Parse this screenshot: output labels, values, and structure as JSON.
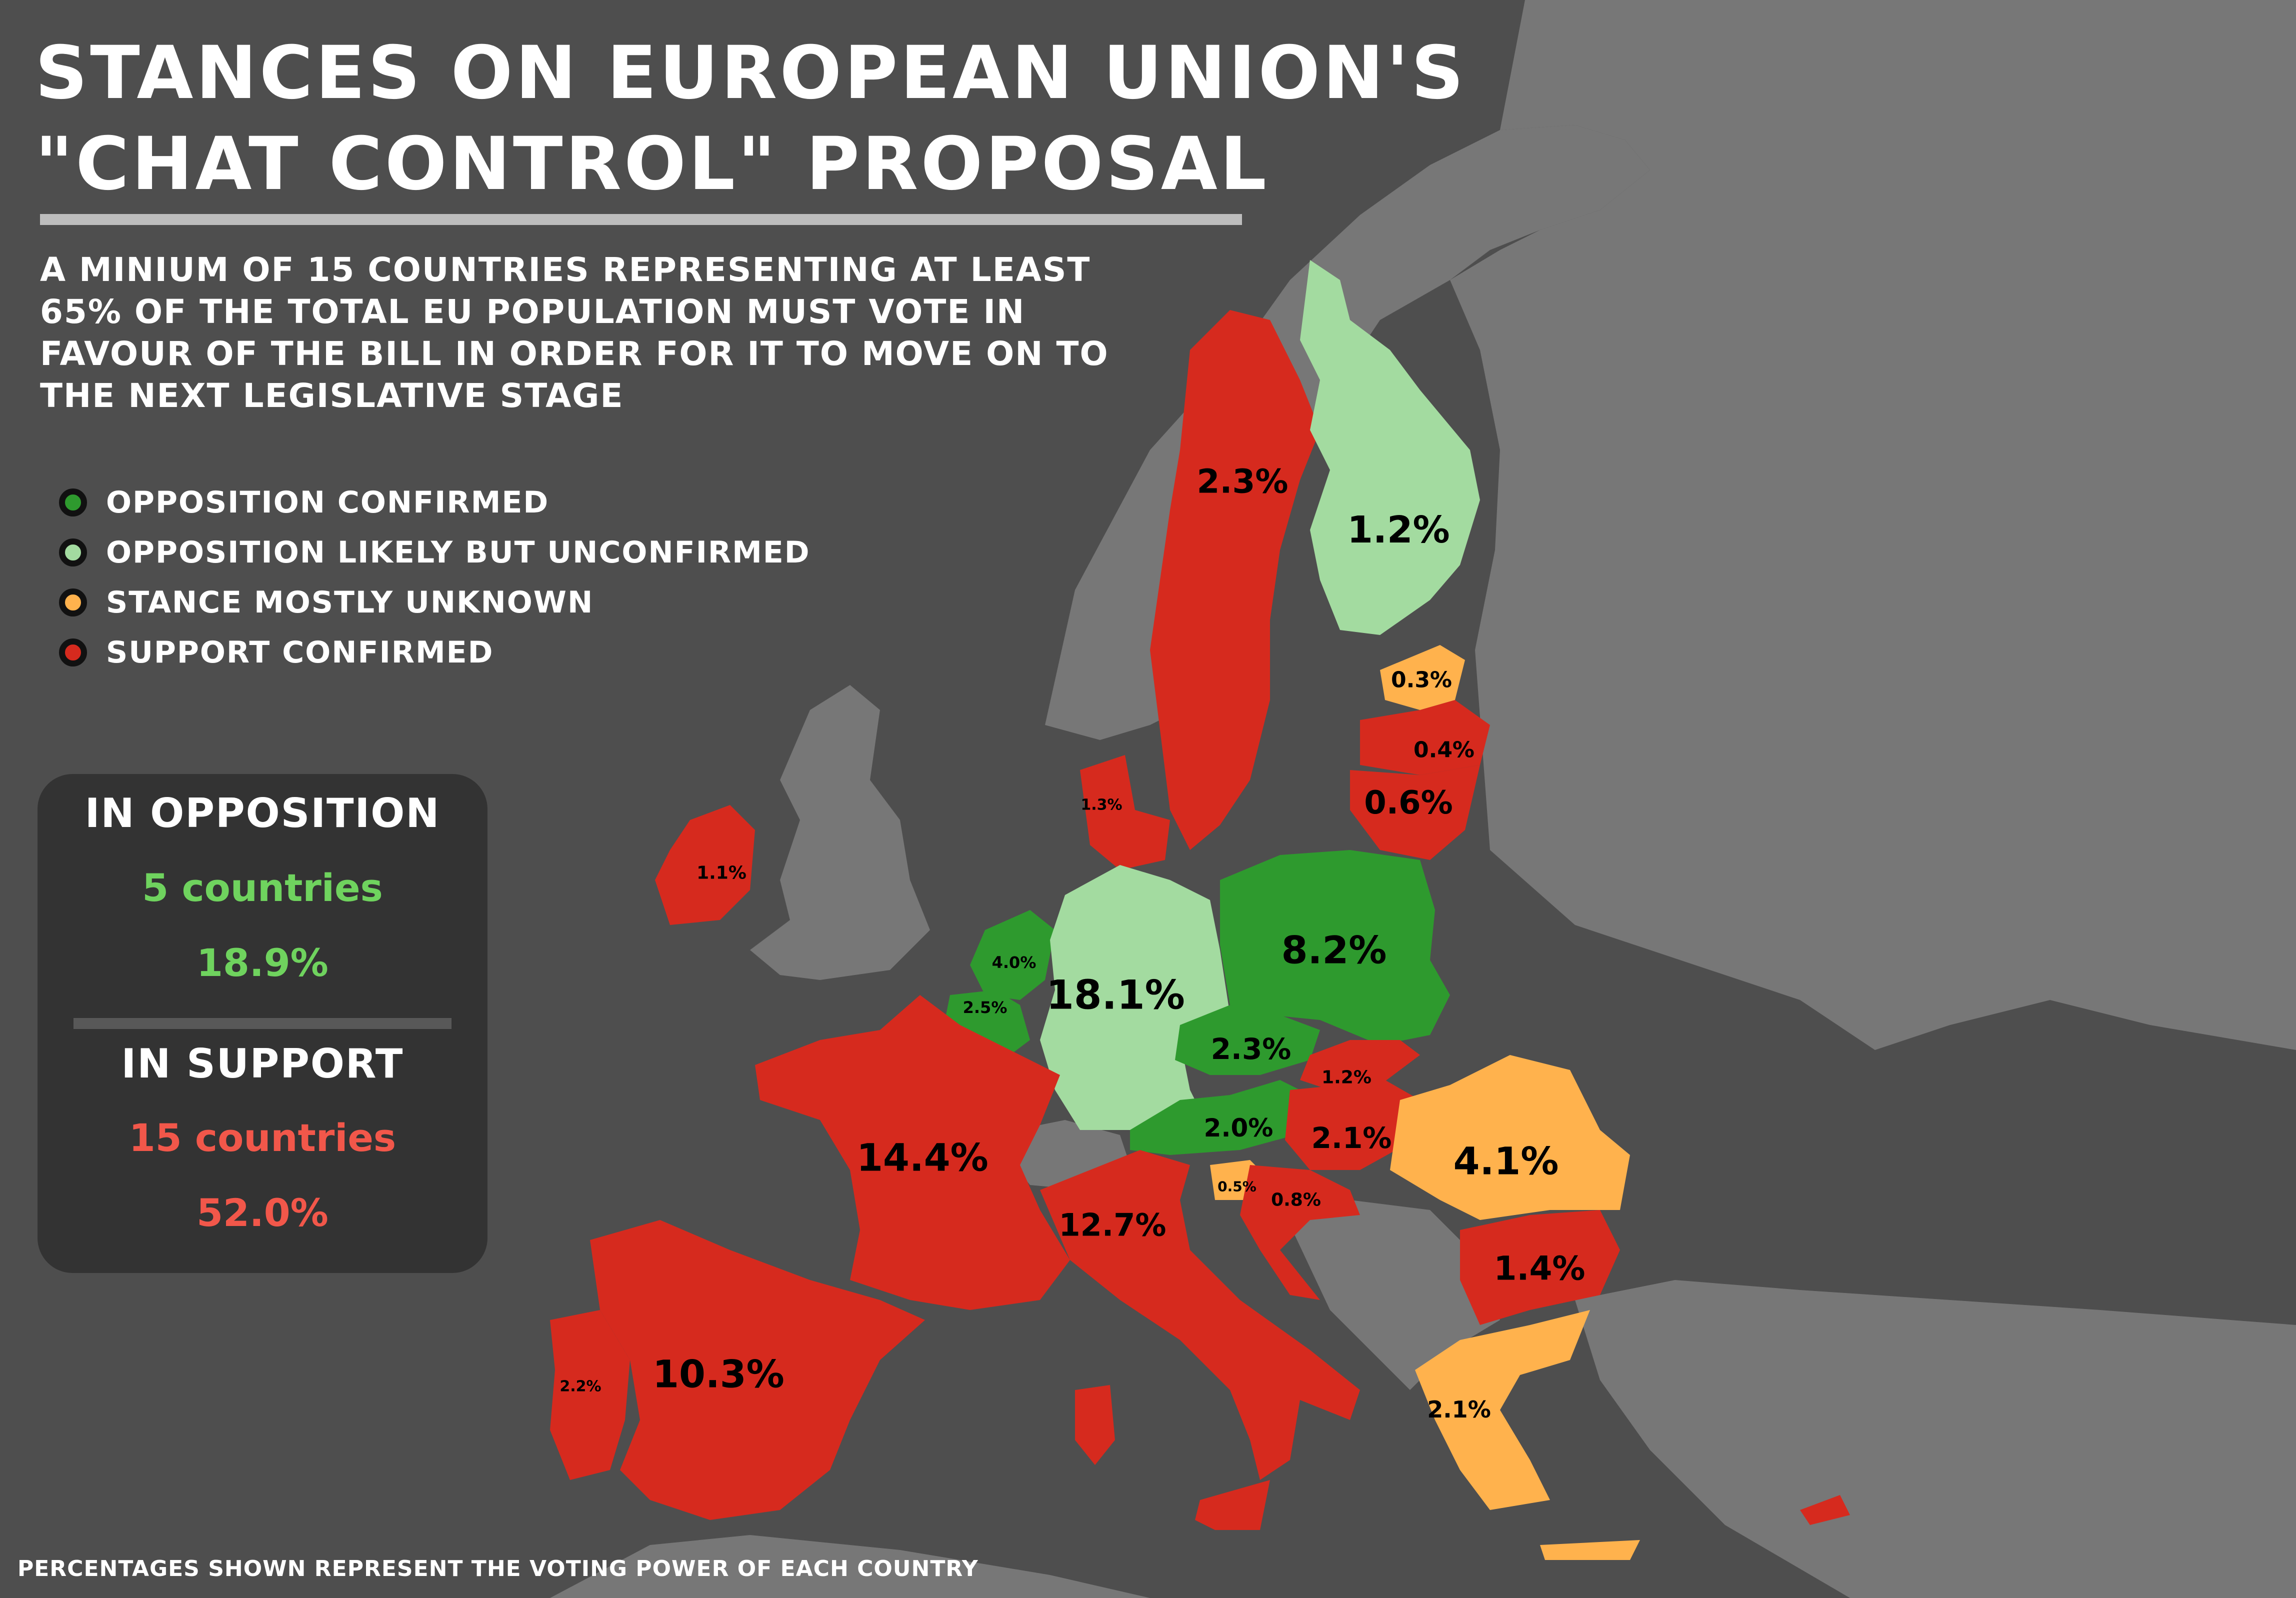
{
  "title_line1": "STANCES ON EUROPEAN UNION'S",
  "title_line2": "\"CHAT CONTROL\" PROPOSAL",
  "subtitle_lines": [
    "A MINIUM OF 15 COUNTRIES REPRESENTING AT LEAST",
    "65% OF THE TOTAL EU POPULATION MUST VOTE IN",
    "FAVOUR OF THE BILL IN ORDER FOR IT TO MOVE ON TO",
    "THE NEXT LEGISLATIVE STAGE"
  ],
  "legend": [
    {
      "label": "OPPOSITION CONFIRMED",
      "color": "#2e9a2e"
    },
    {
      "label": "OPPOSITION LIKELY BUT UNCONFIRMED",
      "color": "#a3dba0"
    },
    {
      "label": "STANCE MOSTLY UNKNOWN",
      "color": "#ffb24d"
    },
    {
      "label": "SUPPORT CONFIRMED",
      "color": "#d62a1e"
    }
  ],
  "summary": {
    "opposition": {
      "heading": "IN OPPOSITION",
      "countries": "5 countries",
      "percent": "18.9%",
      "color": "#6fd35e"
    },
    "support": {
      "heading": "IN SUPPORT",
      "countries": "15 countries",
      "percent": "52.0%",
      "color": "#f2574a"
    }
  },
  "footnote": "PERCENTAGES SHOWN REPRESENT THE VOTING POWER OF EACH COUNTRY",
  "colors": {
    "background_land": "#777777",
    "sea": "#4e4e4e",
    "opposition_confirmed": "#2e9a2e",
    "opposition_likely": "#a3dba0",
    "unknown": "#ffb24d",
    "support": "#d62a1e"
  },
  "countries": [
    {
      "name": "Sweden",
      "stance": "support",
      "percent": "2.3%"
    },
    {
      "name": "Finland",
      "stance": "opposition_likely",
      "percent": "1.2%"
    },
    {
      "name": "Estonia",
      "stance": "unknown",
      "percent": "0.3%"
    },
    {
      "name": "Latvia",
      "stance": "support",
      "percent": "0.4%"
    },
    {
      "name": "Lithuania",
      "stance": "support",
      "percent": "0.6%"
    },
    {
      "name": "Denmark",
      "stance": "support",
      "percent": "1.3%"
    },
    {
      "name": "Ireland",
      "stance": "support",
      "percent": "1.1%"
    },
    {
      "name": "Netherlands",
      "stance": "opposition_confirmed",
      "percent": "4.0%"
    },
    {
      "name": "Belgium",
      "stance": "opposition_confirmed",
      "percent": "2.5%"
    },
    {
      "name": "Germany",
      "stance": "opposition_likely",
      "percent": "18.1%"
    },
    {
      "name": "Poland",
      "stance": "opposition_confirmed",
      "percent": "8.2%"
    },
    {
      "name": "Czechia",
      "stance": "opposition_confirmed",
      "percent": "2.3%"
    },
    {
      "name": "Slovakia",
      "stance": "support",
      "percent": "1.2%"
    },
    {
      "name": "Austria",
      "stance": "opposition_confirmed",
      "percent": "2.0%"
    },
    {
      "name": "Hungary",
      "stance": "support",
      "percent": "2.1%"
    },
    {
      "name": "Romania",
      "stance": "unknown",
      "percent": "4.1%"
    },
    {
      "name": "France",
      "stance": "support",
      "percent": "14.4%"
    },
    {
      "name": "Italy",
      "stance": "support",
      "percent": "12.7%"
    },
    {
      "name": "Slovenia",
      "stance": "unknown",
      "percent": "0.5%"
    },
    {
      "name": "Croatia",
      "stance": "support",
      "percent": "0.8%"
    },
    {
      "name": "Bulgaria",
      "stance": "support",
      "percent": "1.4%"
    },
    {
      "name": "Spain",
      "stance": "support",
      "percent": "10.3%"
    },
    {
      "name": "Portugal",
      "stance": "support",
      "percent": "2.2%"
    },
    {
      "name": "Greece",
      "stance": "unknown",
      "percent": "2.1%"
    }
  ]
}
